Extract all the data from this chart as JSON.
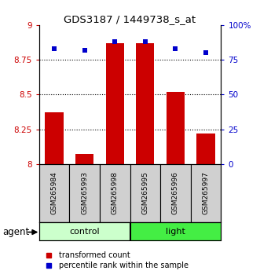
{
  "title": "GDS3187 / 1449738_s_at",
  "samples": [
    "GSM265984",
    "GSM265993",
    "GSM265998",
    "GSM265995",
    "GSM265996",
    "GSM265997"
  ],
  "bar_values": [
    8.37,
    8.07,
    8.87,
    8.87,
    8.52,
    8.22
  ],
  "percentile_values": [
    83,
    82,
    88,
    88,
    83,
    80
  ],
  "ylim_left": [
    8.0,
    9.0
  ],
  "ylim_right": [
    0,
    100
  ],
  "yticks_left": [
    8.0,
    8.25,
    8.5,
    8.75,
    9.0
  ],
  "ytick_labels_left": [
    "8",
    "8.25",
    "8.5",
    "8.75",
    "9"
  ],
  "yticks_right": [
    0,
    25,
    50,
    75,
    100
  ],
  "ytick_labels_right": [
    "0",
    "25",
    "50",
    "75",
    "100%"
  ],
  "grid_lines": [
    8.25,
    8.5,
    8.75
  ],
  "bar_color": "#cc0000",
  "dot_color": "#0000cc",
  "bar_width": 0.6,
  "control_color": "#ccffcc",
  "light_color": "#44ee44",
  "sample_box_color": "#d0d0d0",
  "agent_label": "agent",
  "legend_items": [
    "transformed count",
    "percentile rank within the sample"
  ],
  "tick_label_color_left": "#cc0000",
  "tick_label_color_right": "#0000cc"
}
